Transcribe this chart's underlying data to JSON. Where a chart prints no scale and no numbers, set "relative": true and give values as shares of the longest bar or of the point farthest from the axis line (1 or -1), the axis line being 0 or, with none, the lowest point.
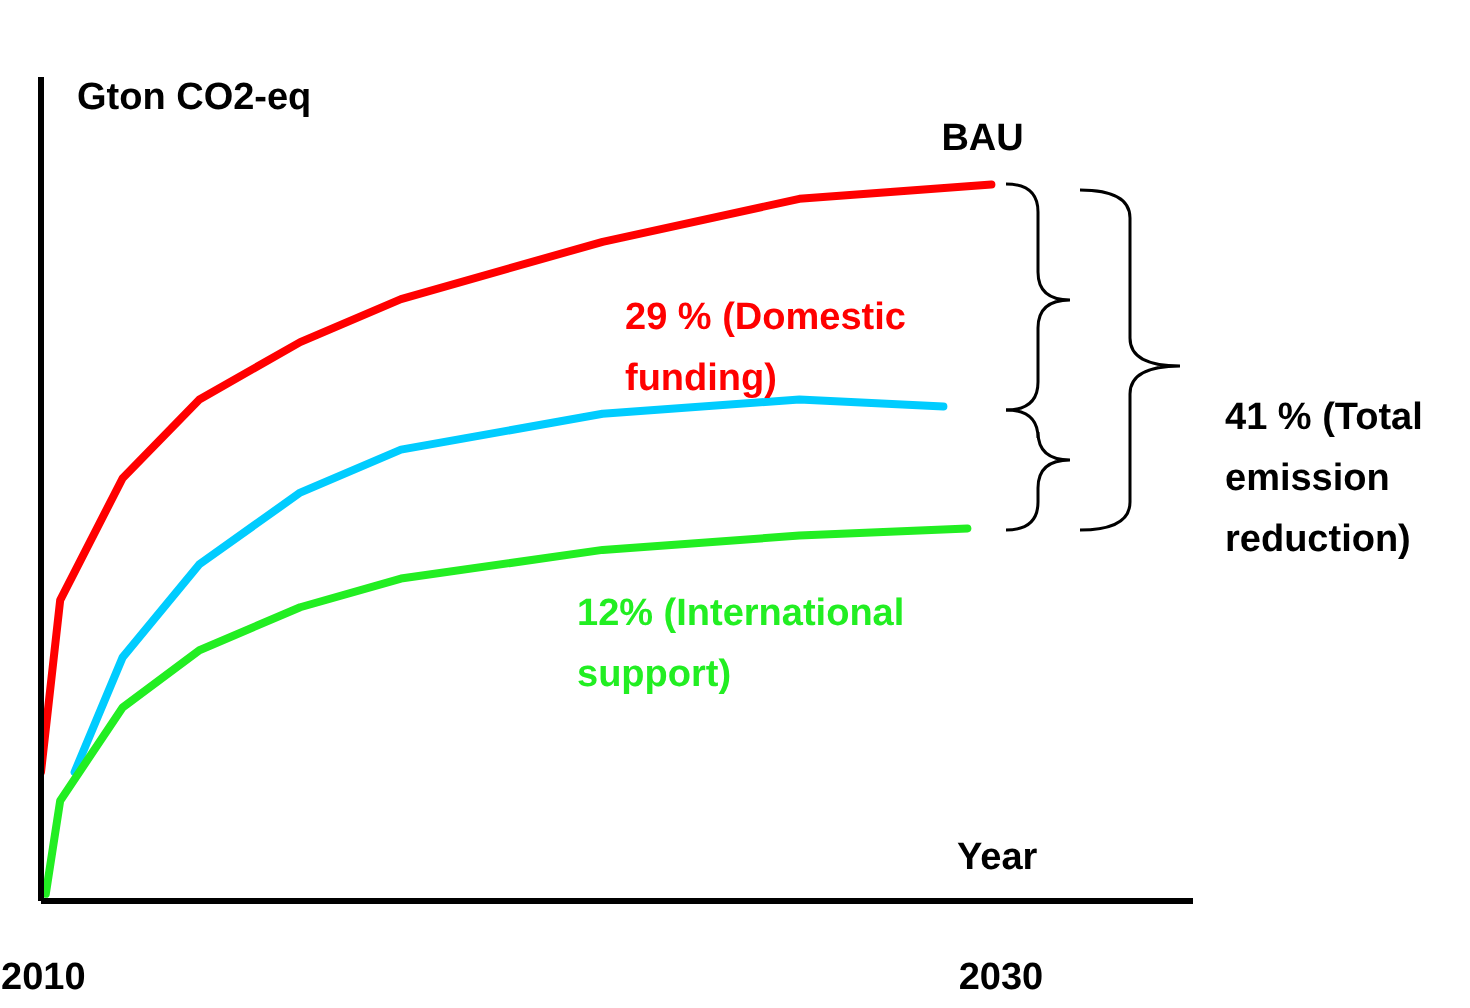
{
  "chart_data": {
    "type": "line",
    "relative": true,
    "ylabel": "Gton CO2-eq",
    "xlabel": "Year",
    "xlim": [
      2010,
      2034
    ],
    "xticks": [
      2010,
      2030
    ],
    "grid": false,
    "legend": false,
    "marker": "none",
    "line_style": "solid",
    "series": [
      {
        "name": "BAU",
        "color": "#ff0000",
        "x": [
          2010,
          2010.4,
          2011.7,
          2013.3,
          2015.4,
          2017.5,
          2021.7,
          2025.8,
          2029.8
        ],
        "values": [
          0.18,
          0.42,
          0.59,
          0.7,
          0.78,
          0.84,
          0.92,
          0.98,
          1.0
        ]
      },
      {
        "color": "#00ccff",
        "x": [
          2010.7,
          2011.7,
          2013.3,
          2015.4,
          2017.5,
          2021.7,
          2025.8,
          2028.8
        ],
        "values": [
          0.18,
          0.34,
          0.47,
          0.57,
          0.63,
          0.68,
          0.7,
          0.69
        ]
      },
      {
        "color": "#22ee22",
        "x": [
          2010.1,
          2010.4,
          2011.7,
          2013.3,
          2015.4,
          2017.5,
          2021.7,
          2025.8,
          2029.3
        ],
        "values": [
          0.01,
          0.14,
          0.27,
          0.35,
          0.41,
          0.45,
          0.49,
          0.51,
          0.52
        ]
      }
    ],
    "annotations": [
      "29 % (Domestic funding)",
      "12% (International support)",
      "41 % (Total emission reduction)"
    ]
  }
}
